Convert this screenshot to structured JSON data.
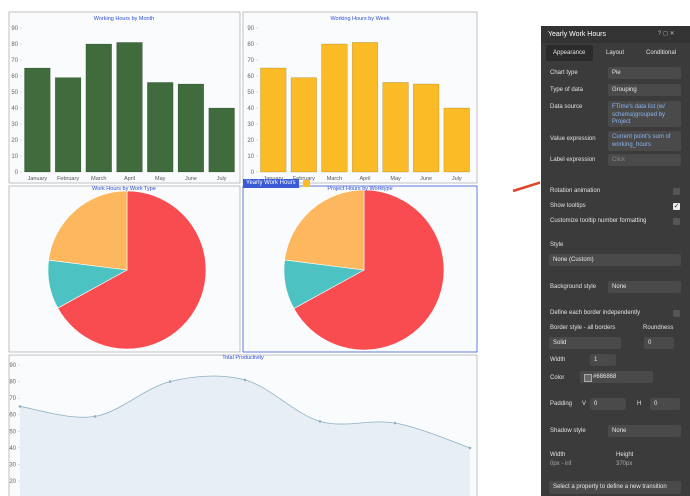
{
  "chart_data": [
    {
      "type": "bar",
      "title": "Working Hours by Month",
      "categories": [
        "January",
        "February",
        "March",
        "April",
        "May",
        "June",
        "July"
      ],
      "values": [
        65,
        59,
        80,
        81,
        56,
        55,
        40
      ],
      "color": "#3f6b3d",
      "ylim": [
        0,
        90
      ],
      "yticks": [
        0,
        10,
        20,
        30,
        40,
        50,
        60,
        70,
        80,
        90
      ]
    },
    {
      "type": "bar",
      "title": "Working Hours by Week",
      "categories": [
        "January",
        "February",
        "March",
        "April",
        "May",
        "June",
        "July"
      ],
      "values": [
        65,
        59,
        80,
        81,
        56,
        55,
        40
      ],
      "color": "#fbbb26",
      "ylim": [
        0,
        90
      ],
      "yticks": [
        0,
        10,
        20,
        30,
        40,
        50,
        60,
        70,
        80,
        90
      ]
    },
    {
      "type": "pie",
      "title": "Work Hours by Work Type",
      "values": [
        67,
        10,
        23
      ],
      "colors": [
        "#f94c51",
        "#4cc3c2",
        "#fdb75e"
      ]
    },
    {
      "type": "pie",
      "title": "Project Hours by Worktype",
      "values": [
        67,
        10,
        23
      ],
      "colors": [
        "#f94c51",
        "#4cc3c2",
        "#fdb75e"
      ]
    },
    {
      "type": "area",
      "title": "Total Productivity",
      "values": [
        65,
        59,
        80,
        81,
        56,
        55,
        40
      ],
      "color": "#8fb0c2",
      "fill": "#e8eef5",
      "ylim": [
        11,
        90
      ],
      "yticks": [
        20,
        30,
        40,
        50,
        60,
        70,
        80,
        90
      ]
    }
  ],
  "canvas_tag": "Yearly Work Hours",
  "panel": {
    "title": "Yearly Work Hours",
    "tabs": [
      "Appearance",
      "Layout",
      "Conditional"
    ],
    "chart_type": {
      "label": "Chart type",
      "value": "Pie"
    },
    "type_of_data": {
      "label": "Type of data",
      "value": "Grouping"
    },
    "data_source": {
      "label": "Data source",
      "value": "FTime's data list (w/ schema)grouped by Project"
    },
    "value_expression": {
      "label": "Value expression",
      "value": "Current point's sum of working_hours"
    },
    "label_expression": {
      "label": "Label expression",
      "value": "Click"
    },
    "rotation_animation": "Rotation animation",
    "show_tooltips": "Show tooltips",
    "customize_tooltip": "Customize tooltip number formatting",
    "style": {
      "label": "Style",
      "value": "None (Custom)"
    },
    "background_style": {
      "label": "Background style",
      "value": "None"
    },
    "define_border": "Define each border independently",
    "border_style": {
      "label": "Border style - all borders",
      "value": "Solid"
    },
    "roundness": {
      "label": "Roundness",
      "value": "0"
    },
    "width": {
      "label": "Width",
      "value": "1"
    },
    "color": {
      "label": "Color",
      "value": "#686868"
    },
    "padding": {
      "label": "Padding",
      "v_label": "V",
      "v_value": "0",
      "h_label": "H",
      "h_value": "0"
    },
    "shadow_style": {
      "label": "Shadow style",
      "value": "None"
    },
    "size_width": {
      "label": "Width",
      "value": "0px - inf"
    },
    "size_height": {
      "label": "Height",
      "value": "370px"
    },
    "transition": "Select a property to define a new transition"
  }
}
